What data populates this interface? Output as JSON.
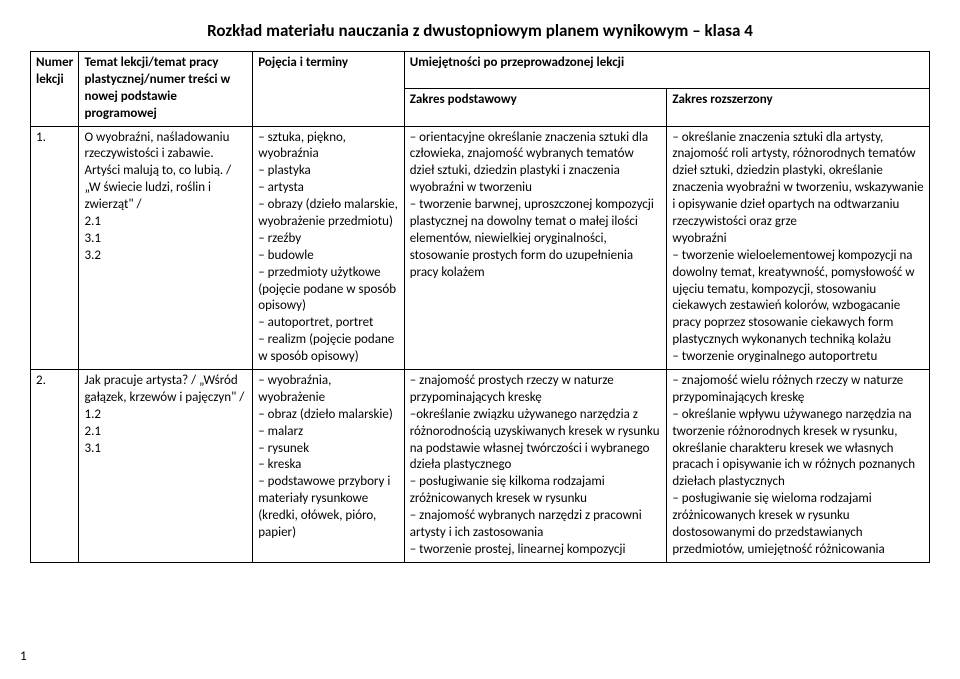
{
  "title": "Rozkład materiału nauczania z dwustopniowym planem wynikowym – klasa 4",
  "headers": {
    "num": "Numer lekcji",
    "topic": "Temat lekcji/temat pracy plastycznej/numer treści w nowej podstawie programowej",
    "terms": "Pojęcia i terminy",
    "skills": "Umiejętności po przeprowadzonej lekcji",
    "basic": "Zakres podstawowy",
    "ext": "Zakres rozszerzony"
  },
  "rows": [
    {
      "num": "1.",
      "topic": "O wyobraźni, naśladowaniu rzeczywistości i zabawie. Artyści malują to, co lubią. / „W świecie ludzi, roślin i zwierząt\" /\n2.1\n3.1\n3.2",
      "terms": "– sztuka, piękno, wyobraźnia\n– plastyka\n– artysta\n– obrazy (dzieło malarskie, wyobrażenie przedmiotu)\n– rzeźby\n– budowle\n– przedmioty użytkowe (pojęcie podane w sposób opisowy)\n– autoportret, portret\n– realizm (pojęcie podane w sposób opisowy)",
      "basic": "– orientacyjne określanie znaczenia sztuki dla człowieka, znajomość wybranych tematów dzieł sztuki, dziedzin plastyki i znaczenia wyobraźni w tworzeniu\n– tworzenie barwnej, uproszczonej kompozycji plastycznej na dowolny temat o małej ilości elementów, niewielkiej oryginalności, stosowanie prostych form do uzupełnienia pracy kolażem",
      "ext": "– określanie znaczenia sztuki dla artysty, znajomość roli artysty, różnorodnych tematów dzieł sztuki, dziedzin plastyki, określanie znaczenia wyobraźni w tworzeniu, wskazywanie i opisywanie dzieł opartych na odtwarzaniu rzeczywistości oraz grze\nwyobraźni\n– tworzenie wieloelementowej kompozycji na dowolny temat, kreatywność, pomysłowość w ujęciu tematu, kompozycji, stosowaniu ciekawych zestawień kolorów, wzbogacanie pracy poprzez stosowanie ciekawych form plastycznych wykonanych techniką kolażu\n– tworzenie oryginalnego autoportretu"
    },
    {
      "num": "2.",
      "topic": "Jak pracuje artysta? / „Wśród gałązek, krzewów i pajęczyn\" /\n1.2\n2.1\n3.1",
      "terms": "– wyobraźnia, wyobrażenie\n– obraz (dzieło malarskie)\n– malarz\n– rysunek\n– kreska\n– podstawowe przybory i materiały rysunkowe (kredki, ołówek, pióro, papier)",
      "basic": "– znajomość prostych rzeczy w naturze przypominających kreskę\n–określanie związku używanego narzędzia z różnorodnością uzyskiwanych kresek w rysunku na podstawie własnej twórczości i wybranego dzieła plastycznego\n– posługiwanie się kilkoma rodzajami zróżnicowanych kresek w rysunku\n– znajomość wybranych narzędzi z pracowni artysty i ich zastosowania\n– tworzenie prostej, linearnej kompozycji",
      "ext": "– znajomość wielu różnych rzeczy w naturze przypominających kreskę\n– określanie wpływu używanego narzędzia na tworzenie różnorodnych kresek w rysunku, określanie charakteru kresek we własnych pracach i opisywanie ich w różnych poznanych dziełach plastycznych\n– posługiwanie się wieloma rodzajami zróżnicowanych kresek w rysunku dostosowanymi do przedstawianych przedmiotów, umiejętność różnicowania"
    }
  ],
  "pageNumber": "1"
}
